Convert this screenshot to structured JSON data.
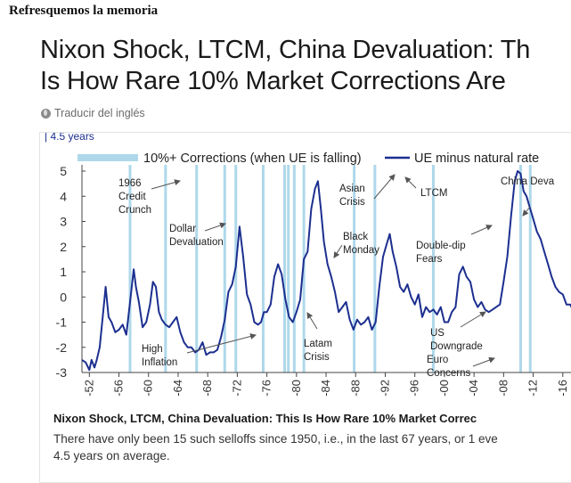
{
  "blog": {
    "heading": "Refresquemos la memoria"
  },
  "article": {
    "title_line1": "Nixon Shock, LTCM, China Devaluation: Th",
    "title_line2": "Is How Rare 10% Market Corrections Are",
    "translate_label": "Traducir del inglés"
  },
  "card": {
    "caption_title": "Nixon Shock, LTCM, China Devaluation: This Is How Rare 10% Market Correc",
    "caption_line1": "There have only been 15 such selloffs since 1950, i.e., in the last 67 years, or 1 eve",
    "caption_line2": "4.5 years on average."
  },
  "colors": {
    "series": "#1c2f8f",
    "bars": "#aed8ea",
    "arrow": "#555555"
  },
  "chart_data": {
    "type": "line",
    "header_text": "4.5 years",
    "legend": [
      {
        "label": "10%+ Corrections (when UE is falling)",
        "kind": "bar"
      },
      {
        "label": "UE minus natural rate",
        "kind": "line"
      }
    ],
    "ylim": [
      -3,
      5
    ],
    "yticks": [
      5,
      4,
      3,
      2,
      1,
      0,
      -1,
      -2,
      -3
    ],
    "xlim": [
      1951,
      2020
    ],
    "xticks": [
      "1952",
      "1956",
      "1960",
      "1964",
      "1968",
      "1972",
      "1976",
      "1980",
      "1984",
      "1988",
      "1992",
      "1996",
      "2000",
      "2004",
      "2008",
      "2012",
      "2016"
    ],
    "xtick_labels": [
      "-52",
      "-56",
      "-60",
      "-64",
      "-68",
      "-72",
      "-76",
      "-80",
      "-84",
      "-88",
      "-92",
      "-96",
      "-00",
      "-04",
      "-08",
      "-12",
      "-16"
    ],
    "corrections": [
      1957.5,
      1962.3,
      1966.5,
      1970.3,
      1971.8,
      1975.5,
      1978.4,
      1978.9,
      1979.7,
      1981.0,
      1987.8,
      1990.6,
      1998.5,
      2010.3,
      2011.6
    ],
    "series": [
      {
        "name": "UE minus natural rate",
        "x": [
          1951.0,
          1951.5,
          1952.0,
          1952.3,
          1952.7,
          1953.0,
          1953.4,
          1953.8,
          1954.2,
          1954.6,
          1955.0,
          1955.5,
          1956.0,
          1956.5,
          1957.0,
          1957.5,
          1958.0,
          1958.3,
          1958.7,
          1959.2,
          1959.7,
          1960.2,
          1960.6,
          1961.0,
          1961.4,
          1961.8,
          1962.3,
          1962.8,
          1963.3,
          1963.8,
          1964.3,
          1964.8,
          1965.3,
          1965.8,
          1966.3,
          1966.8,
          1967.3,
          1967.8,
          1968.3,
          1968.8,
          1969.3,
          1969.8,
          1970.3,
          1970.8,
          1971.3,
          1971.8,
          1972.3,
          1972.8,
          1973.3,
          1973.8,
          1974.3,
          1974.8,
          1975.2,
          1975.6,
          1976.0,
          1976.5,
          1977.0,
          1977.5,
          1978.0,
          1978.5,
          1979.0,
          1979.5,
          1980.0,
          1980.5,
          1981.0,
          1981.5,
          1982.0,
          1982.5,
          1982.9,
          1983.3,
          1983.7,
          1984.2,
          1984.7,
          1985.2,
          1985.7,
          1986.2,
          1986.7,
          1987.2,
          1987.7,
          1988.2,
          1988.7,
          1989.2,
          1989.7,
          1990.2,
          1990.7,
          1991.2,
          1991.7,
          1992.2,
          1992.6,
          1993.0,
          1993.5,
          1994.0,
          1994.5,
          1995.0,
          1995.5,
          1996.0,
          1996.5,
          1997.0,
          1997.5,
          1998.0,
          1998.5,
          1999.0,
          1999.5,
          2000.0,
          2000.5,
          2001.0,
          2001.5,
          2002.0,
          2002.5,
          2003.0,
          2003.5,
          2004.0,
          2004.5,
          2005.0,
          2005.5,
          2006.0,
          2006.5,
          2007.0,
          2007.5,
          2008.0,
          2008.5,
          2009.0,
          2009.5,
          2009.9,
          2010.3,
          2010.7,
          2011.1,
          2011.5,
          2012.0,
          2012.5,
          2013.0,
          2013.5,
          2014.0,
          2014.5,
          2015.0,
          2015.5,
          2016.0,
          2016.5,
          2017.0,
          2017.5,
          2018.0
        ],
        "y": [
          -2.5,
          -2.6,
          -2.9,
          -2.5,
          -2.8,
          -2.5,
          -2.0,
          -0.8,
          0.4,
          -0.8,
          -1.0,
          -1.4,
          -1.3,
          -1.1,
          -1.5,
          -0.2,
          1.1,
          0.4,
          -0.2,
          -1.2,
          -1.0,
          -0.3,
          0.6,
          0.4,
          -0.6,
          -0.9,
          -1.1,
          -1.2,
          -1.0,
          -0.8,
          -1.4,
          -1.8,
          -2.0,
          -2.0,
          -2.2,
          -2.1,
          -1.8,
          -2.3,
          -2.2,
          -2.2,
          -2.1,
          -1.6,
          -0.9,
          0.2,
          0.5,
          1.2,
          2.8,
          1.6,
          0.1,
          -0.3,
          -1.0,
          -1.1,
          -1.0,
          -0.6,
          -0.6,
          -0.3,
          0.8,
          1.3,
          0.9,
          -0.1,
          -0.8,
          -1.0,
          -0.6,
          -0.1,
          1.5,
          1.8,
          3.5,
          4.3,
          4.6,
          3.5,
          2.2,
          1.3,
          0.8,
          0.2,
          -0.6,
          -0.4,
          -0.2,
          -0.9,
          -1.3,
          -0.9,
          -1.1,
          -1.0,
          -0.8,
          -1.3,
          -1.0,
          0.4,
          1.6,
          2.1,
          2.5,
          1.8,
          1.2,
          0.4,
          0.2,
          0.5,
          0.0,
          -0.3,
          0.1,
          -0.8,
          -0.4,
          -0.6,
          -0.5,
          -0.7,
          -0.4,
          -1.0,
          -1.0,
          -0.6,
          -0.4,
          0.9,
          1.2,
          0.8,
          0.6,
          -0.1,
          -0.4,
          -0.2,
          -0.5,
          -0.6,
          -0.5,
          -0.4,
          -0.3,
          0.6,
          1.6,
          3.2,
          4.6,
          5.0,
          4.9,
          4.2,
          4.0,
          3.6,
          3.1,
          2.6,
          2.3,
          1.8,
          1.3,
          0.8,
          0.4,
          0.2,
          0.1,
          -0.3,
          -0.3,
          -0.6,
          -0.7
        ]
      }
    ],
    "annotations": [
      {
        "label_lines": [
          "1966",
          "Credit",
          "Crunch"
        ]
      },
      {
        "label_lines": [
          "Dollar",
          "Devaluation"
        ]
      },
      {
        "label_lines": [
          "High",
          "Inflation"
        ]
      },
      {
        "label_lines": [
          "Asian",
          "Crisis"
        ]
      },
      {
        "label_lines": [
          "LTCM"
        ]
      },
      {
        "label_lines": [
          "Black",
          "Monday"
        ]
      },
      {
        "label_lines": [
          "Latam",
          "Crisis"
        ]
      },
      {
        "label_lines": [
          "Double-dip",
          "Fears"
        ]
      },
      {
        "label_lines": [
          "US",
          "Downgrade"
        ]
      },
      {
        "label_lines": [
          "Euro",
          "Concerns"
        ]
      },
      {
        "label_lines": [
          "China Deva"
        ]
      }
    ]
  }
}
